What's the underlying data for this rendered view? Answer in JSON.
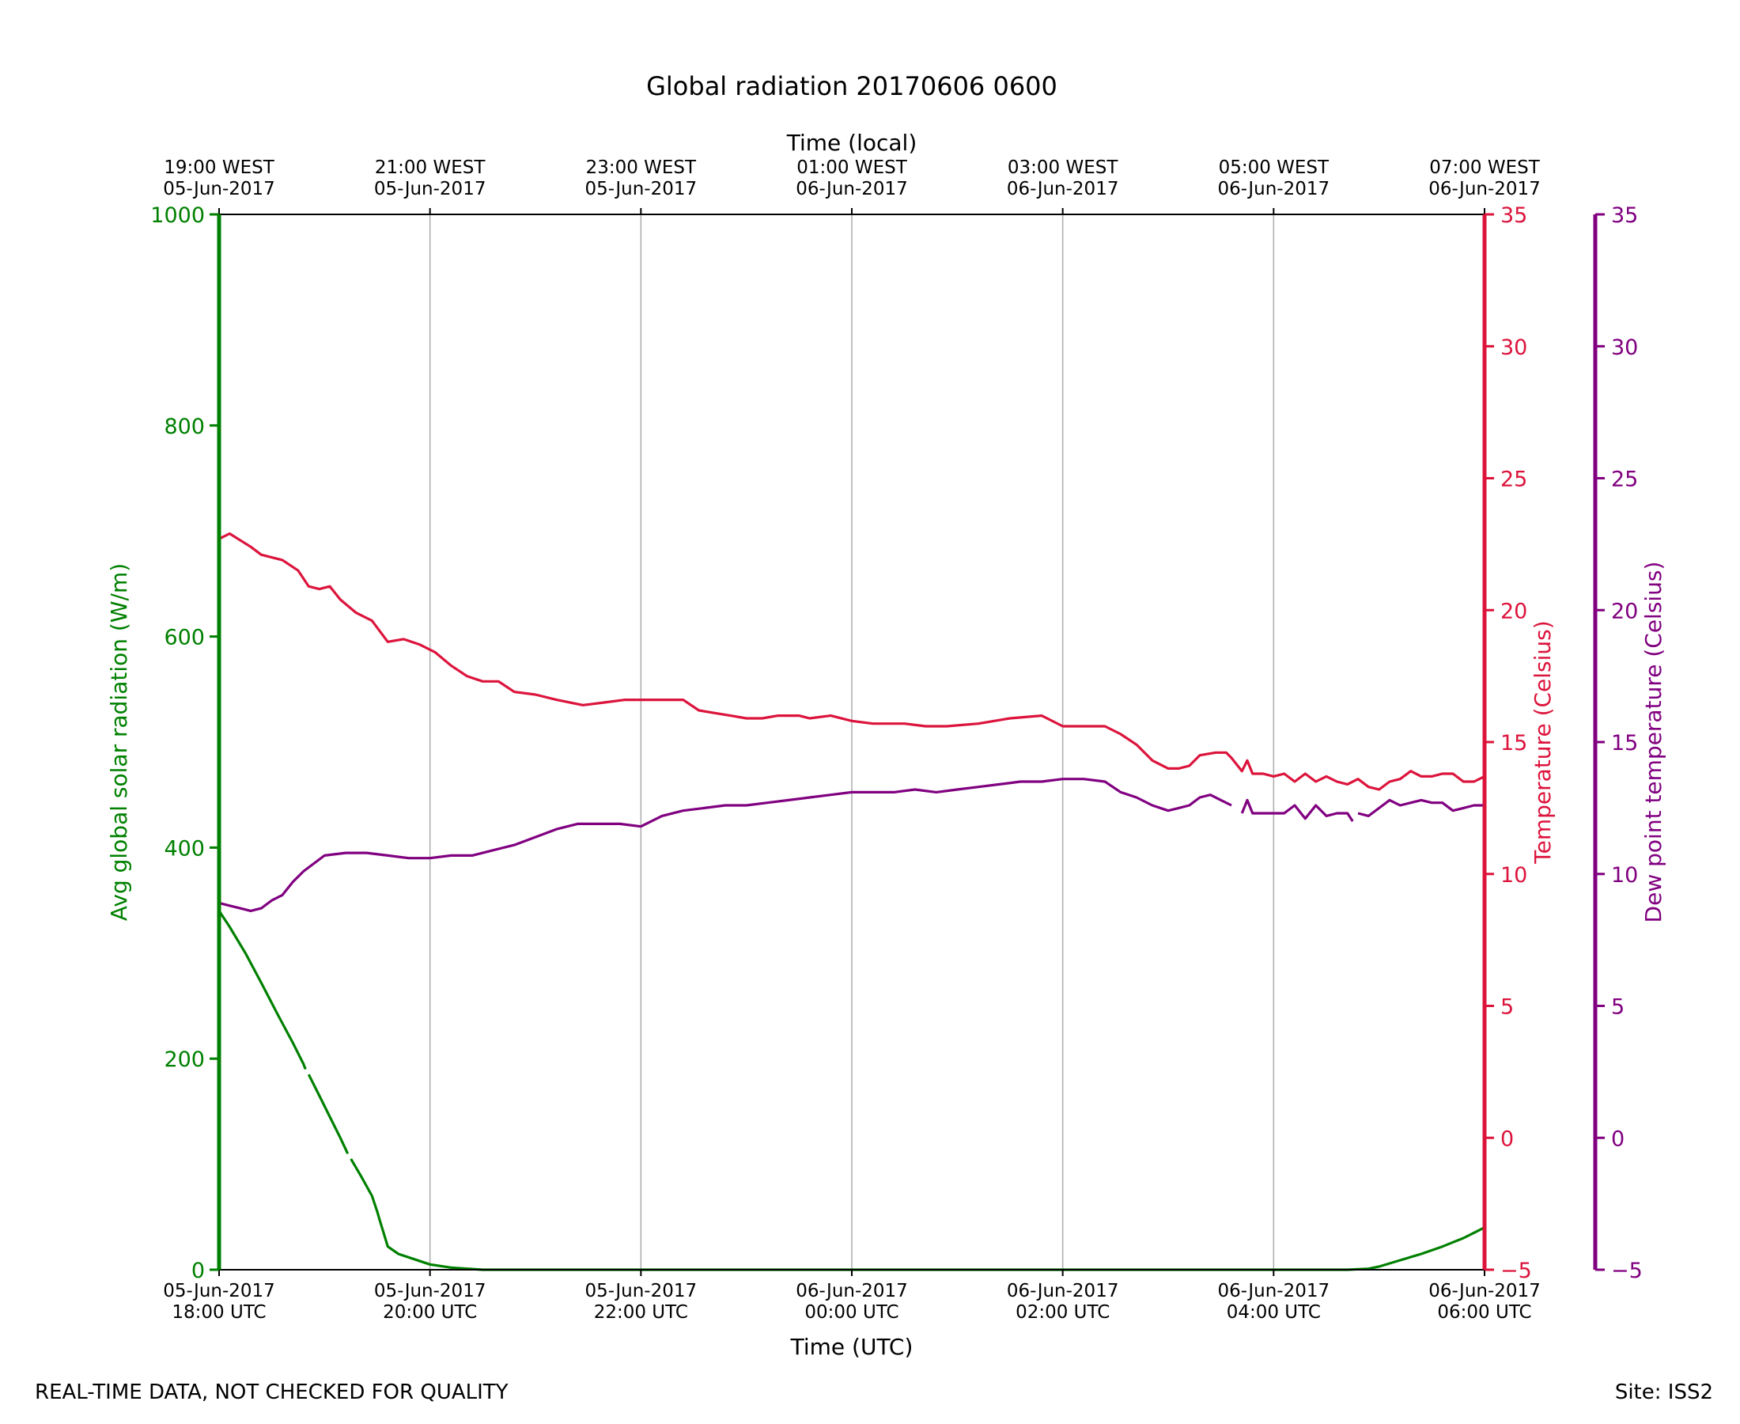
{
  "footer": {
    "disclaimer": "REAL-TIME DATA, NOT CHECKED FOR QUALITY",
    "site": "Site: ISS2"
  },
  "chart_data": {
    "type": "line",
    "title": "Global radiation 20170606 0600",
    "xlabel": "Time (UTC)",
    "xlabel_top": "Time (local)",
    "x_range_hours": [
      0,
      12
    ],
    "x_ticks_bottom": [
      {
        "hour": 0,
        "line1": "05-Jun-2017",
        "line2": "18:00 UTC"
      },
      {
        "hour": 2,
        "line1": "05-Jun-2017",
        "line2": "20:00 UTC"
      },
      {
        "hour": 4,
        "line1": "05-Jun-2017",
        "line2": "22:00 UTC"
      },
      {
        "hour": 6,
        "line1": "06-Jun-2017",
        "line2": "00:00 UTC"
      },
      {
        "hour": 8,
        "line1": "06-Jun-2017",
        "line2": "02:00 UTC"
      },
      {
        "hour": 10,
        "line1": "06-Jun-2017",
        "line2": "04:00 UTC"
      },
      {
        "hour": 12,
        "line1": "06-Jun-2017",
        "line2": "06:00 UTC"
      }
    ],
    "x_ticks_top": [
      {
        "hour": 0,
        "line1": "19:00 WEST",
        "line2": "05-Jun-2017"
      },
      {
        "hour": 2,
        "line1": "21:00 WEST",
        "line2": "05-Jun-2017"
      },
      {
        "hour": 4,
        "line1": "23:00 WEST",
        "line2": "05-Jun-2017"
      },
      {
        "hour": 6,
        "line1": "01:00 WEST",
        "line2": "06-Jun-2017"
      },
      {
        "hour": 8,
        "line1": "03:00 WEST",
        "line2": "06-Jun-2017"
      },
      {
        "hour": 10,
        "line1": "05:00 WEST",
        "line2": "06-Jun-2017"
      },
      {
        "hour": 12,
        "line1": "07:00 WEST",
        "line2": "06-Jun-2017"
      }
    ],
    "grid": "vertical",
    "axes": {
      "radiation": {
        "label": "Avg global solar radiation (W/m)",
        "range": [
          0,
          1000
        ],
        "ticks": [
          0,
          200,
          400,
          600,
          800,
          1000
        ],
        "color": "#008000",
        "side": "left"
      },
      "temperature": {
        "label": "Temperature (Celsius)",
        "range": [
          -5,
          35
        ],
        "ticks": [
          -5,
          0,
          5,
          10,
          15,
          20,
          25,
          30,
          35
        ],
        "color": "#dc143c",
        "side": "right"
      },
      "dewpoint": {
        "label": "Dew point temperature (Celsius)",
        "range": [
          -5,
          35
        ],
        "ticks": [
          -5,
          0,
          5,
          10,
          15,
          20,
          25,
          30,
          35
        ],
        "color": "#800080",
        "side": "right-outer"
      }
    },
    "series": [
      {
        "axis": "radiation",
        "color": "#008000",
        "points": [
          [
            0,
            340
          ],
          [
            0.1,
            325
          ],
          [
            0.25,
            300
          ],
          [
            0.4,
            272
          ],
          [
            0.55,
            243
          ],
          [
            0.7,
            215
          ],
          [
            0.8,
            195
          ],
          [
            0.82,
            190
          ],
          null,
          [
            0.85,
            185
          ],
          [
            0.95,
            165
          ],
          [
            1.05,
            145
          ],
          [
            1.15,
            125
          ],
          [
            1.22,
            110
          ],
          null,
          [
            1.25,
            105
          ],
          [
            1.35,
            88
          ],
          [
            1.45,
            70
          ],
          [
            1.5,
            55
          ],
          [
            1.52,
            48
          ],
          [
            1.56,
            35
          ],
          [
            1.6,
            22
          ],
          [
            1.7,
            15
          ],
          [
            1.85,
            10
          ],
          [
            2.0,
            5
          ],
          [
            2.2,
            2
          ],
          [
            2.5,
            0
          ],
          [
            3,
            0
          ],
          [
            4,
            0
          ],
          [
            5,
            0
          ],
          [
            6,
            0
          ],
          [
            7,
            0
          ],
          [
            8,
            0
          ],
          [
            9,
            0
          ],
          [
            10,
            0
          ],
          [
            10.7,
            0
          ],
          [
            10.9,
            1
          ],
          [
            11.0,
            3
          ],
          [
            11.2,
            9
          ],
          [
            11.4,
            15
          ],
          [
            11.6,
            22
          ],
          [
            11.7,
            26
          ],
          [
            11.8,
            30
          ],
          [
            11.9,
            35
          ],
          [
            12.0,
            40
          ]
        ]
      },
      {
        "axis": "temperature",
        "points": [
          [
            0,
            22.7
          ],
          [
            0.1,
            22.9
          ],
          [
            0.3,
            22.4
          ],
          [
            0.4,
            22.1
          ],
          [
            0.6,
            21.9
          ],
          [
            0.75,
            21.5
          ],
          [
            0.85,
            20.9
          ],
          [
            0.95,
            20.8
          ],
          [
            1.05,
            20.9
          ],
          [
            1.15,
            20.4
          ],
          [
            1.3,
            19.9
          ],
          [
            1.45,
            19.6
          ],
          [
            1.6,
            18.8
          ],
          [
            1.75,
            18.9
          ],
          [
            1.9,
            18.7
          ],
          [
            2.05,
            18.4
          ],
          [
            2.2,
            17.9
          ],
          [
            2.35,
            17.5
          ],
          [
            2.5,
            17.3
          ],
          [
            2.65,
            17.3
          ],
          [
            2.8,
            16.9
          ],
          [
            3.0,
            16.8
          ],
          [
            3.2,
            16.6
          ],
          [
            3.45,
            16.4
          ],
          [
            3.65,
            16.5
          ],
          [
            3.85,
            16.6
          ],
          [
            4.0,
            16.6
          ],
          [
            4.2,
            16.6
          ],
          [
            4.4,
            16.6
          ],
          [
            4.55,
            16.2
          ],
          [
            4.7,
            16.1
          ],
          [
            4.85,
            16.0
          ],
          [
            5.0,
            15.9
          ],
          [
            5.15,
            15.9
          ],
          [
            5.3,
            16.0
          ],
          [
            5.5,
            16.0
          ],
          [
            5.6,
            15.9
          ],
          [
            5.8,
            16.0
          ],
          [
            6.0,
            15.8
          ],
          [
            6.2,
            15.7
          ],
          [
            6.5,
            15.7
          ],
          [
            6.7,
            15.6
          ],
          [
            6.9,
            15.6
          ],
          [
            7.2,
            15.7
          ],
          [
            7.5,
            15.9
          ],
          [
            7.8,
            16.0
          ],
          [
            8.0,
            15.6
          ],
          [
            8.2,
            15.6
          ],
          [
            8.4,
            15.6
          ],
          [
            8.55,
            15.3
          ],
          [
            8.7,
            14.9
          ],
          [
            8.85,
            14.3
          ],
          [
            9.0,
            14.0
          ],
          [
            9.1,
            14.0
          ],
          [
            9.2,
            14.1
          ],
          [
            9.3,
            14.5
          ],
          [
            9.45,
            14.6
          ],
          [
            9.55,
            14.6
          ],
          [
            9.6,
            14.4
          ],
          [
            9.7,
            13.9
          ],
          [
            9.75,
            14.3
          ],
          [
            9.8,
            13.8
          ],
          [
            9.9,
            13.8
          ],
          [
            10.0,
            13.7
          ],
          [
            10.1,
            13.8
          ],
          [
            10.2,
            13.5
          ],
          [
            10.3,
            13.8
          ],
          [
            10.4,
            13.5
          ],
          [
            10.5,
            13.7
          ],
          [
            10.6,
            13.5
          ],
          [
            10.7,
            13.4
          ],
          [
            10.8,
            13.6
          ],
          [
            10.9,
            13.3
          ],
          [
            11.0,
            13.2
          ],
          [
            11.1,
            13.5
          ],
          [
            11.2,
            13.6
          ],
          [
            11.3,
            13.9
          ],
          [
            11.4,
            13.7
          ],
          [
            11.5,
            13.7
          ],
          [
            11.6,
            13.8
          ],
          [
            11.7,
            13.8
          ],
          [
            11.8,
            13.5
          ],
          [
            11.9,
            13.5
          ],
          [
            12.0,
            13.7
          ]
        ]
      },
      {
        "axis": "dewpoint",
        "points": [
          [
            0,
            8.9
          ],
          [
            0.1,
            8.8
          ],
          [
            0.2,
            8.7
          ],
          [
            0.3,
            8.6
          ],
          [
            0.4,
            8.7
          ],
          [
            0.5,
            9.0
          ],
          [
            0.6,
            9.2
          ],
          [
            0.7,
            9.7
          ],
          [
            0.8,
            10.1
          ],
          [
            0.9,
            10.4
          ],
          [
            1.0,
            10.7
          ],
          [
            1.2,
            10.8
          ],
          [
            1.4,
            10.8
          ],
          [
            1.6,
            10.7
          ],
          [
            1.8,
            10.6
          ],
          [
            2.0,
            10.6
          ],
          [
            2.2,
            10.7
          ],
          [
            2.4,
            10.7
          ],
          [
            2.6,
            10.9
          ],
          [
            2.8,
            11.1
          ],
          [
            3.0,
            11.4
          ],
          [
            3.2,
            11.7
          ],
          [
            3.4,
            11.9
          ],
          [
            3.6,
            11.9
          ],
          [
            3.8,
            11.9
          ],
          [
            4.0,
            11.8
          ],
          [
            4.2,
            12.2
          ],
          [
            4.4,
            12.4
          ],
          [
            4.6,
            12.5
          ],
          [
            4.8,
            12.6
          ],
          [
            5.0,
            12.6
          ],
          [
            5.2,
            12.7
          ],
          [
            5.4,
            12.8
          ],
          [
            5.6,
            12.9
          ],
          [
            5.8,
            13.0
          ],
          [
            6.0,
            13.1
          ],
          [
            6.2,
            13.1
          ],
          [
            6.4,
            13.1
          ],
          [
            6.6,
            13.2
          ],
          [
            6.8,
            13.1
          ],
          [
            7.0,
            13.2
          ],
          [
            7.2,
            13.3
          ],
          [
            7.4,
            13.4
          ],
          [
            7.6,
            13.5
          ],
          [
            7.8,
            13.5
          ],
          [
            8.0,
            13.6
          ],
          [
            8.2,
            13.6
          ],
          [
            8.4,
            13.5
          ],
          [
            8.55,
            13.1
          ],
          [
            8.7,
            12.9
          ],
          [
            8.85,
            12.6
          ],
          [
            9.0,
            12.4
          ],
          [
            9.1,
            12.5
          ],
          [
            9.2,
            12.6
          ],
          [
            9.3,
            12.9
          ],
          [
            9.4,
            13.0
          ],
          [
            9.5,
            12.8
          ],
          [
            9.6,
            12.6
          ],
          null,
          [
            9.7,
            12.3
          ],
          [
            9.75,
            12.8
          ],
          [
            9.8,
            12.3
          ],
          [
            9.9,
            12.3
          ],
          [
            10.0,
            12.3
          ],
          [
            10.1,
            12.3
          ],
          [
            10.2,
            12.6
          ],
          [
            10.3,
            12.1
          ],
          [
            10.4,
            12.6
          ],
          [
            10.5,
            12.2
          ],
          [
            10.6,
            12.3
          ],
          [
            10.7,
            12.3
          ],
          [
            10.75,
            12.0
          ],
          null,
          [
            10.8,
            12.3
          ],
          [
            10.9,
            12.2
          ],
          [
            11.0,
            12.5
          ],
          [
            11.1,
            12.8
          ],
          [
            11.2,
            12.6
          ],
          [
            11.3,
            12.7
          ],
          [
            11.4,
            12.8
          ],
          [
            11.5,
            12.7
          ],
          [
            11.6,
            12.7
          ],
          [
            11.7,
            12.4
          ],
          [
            11.8,
            12.5
          ],
          [
            11.9,
            12.6
          ],
          [
            12.0,
            12.6
          ]
        ]
      }
    ]
  }
}
